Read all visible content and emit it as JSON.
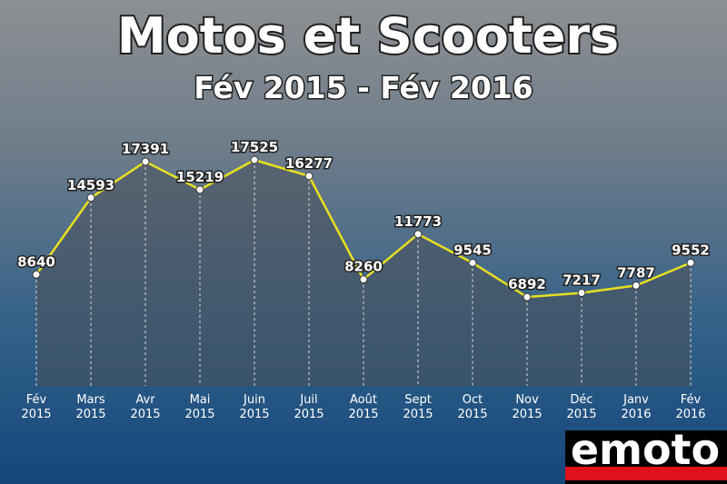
{
  "chart_data": {
    "type": "line",
    "title": "Motos et Scooters",
    "subtitle": "Fév 2015 - Fév 2016",
    "categories": [
      "Fév\n2015",
      "Mars\n2015",
      "Avr\n2015",
      "Mai\n2015",
      "Juin\n2015",
      "Juil\n2015",
      "Août\n2015",
      "Sept\n2015",
      "Oct\n2015",
      "Nov\n2015",
      "Déc\n2015",
      "Janv\n2016",
      "Fév\n2016"
    ],
    "values": [
      8640,
      14593,
      17391,
      15219,
      17525,
      16277,
      8260,
      11773,
      9545,
      6892,
      7217,
      7787,
      9552
    ],
    "color": "#e8e020",
    "ylim": [
      0,
      20000
    ]
  },
  "logo": "emoto"
}
